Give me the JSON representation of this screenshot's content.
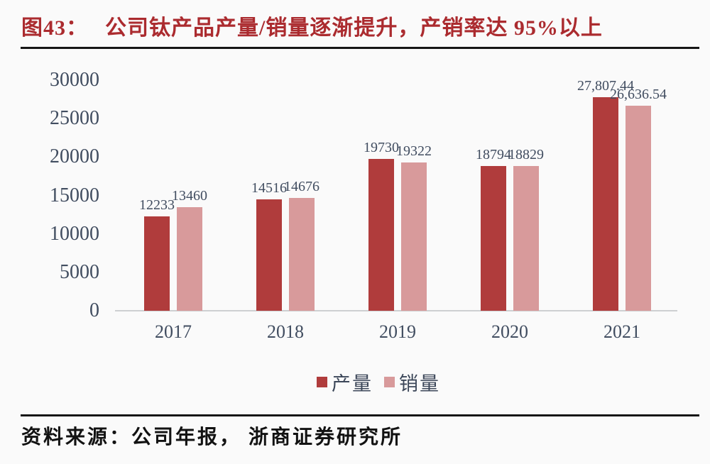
{
  "figure": {
    "label": "图43：",
    "title": "公司钛产品产量/销量逐渐提升，产销率达 95%以上"
  },
  "source": {
    "label": "资料来源：",
    "text": "公司年报， 浙商证券研究所"
  },
  "colors": {
    "title_red": "#AB2B2F",
    "production_bar": "#B03C3C",
    "sales_bar": "#D89A9B",
    "axis_text": "#414D60",
    "rule_black": "#161616",
    "baseline_gray": "#CDCFD1",
    "background": "#FAFAFA"
  },
  "chart_data": {
    "type": "bar",
    "categories": [
      "2017",
      "2018",
      "2019",
      "2020",
      "2021"
    ],
    "series": [
      {
        "name": "产量",
        "color": "#B03C3C",
        "values": [
          12233,
          14516,
          19730,
          18794,
          27807.44
        ],
        "value_labels": [
          "12233",
          "14516",
          "19730",
          "18794",
          "27,807.44"
        ]
      },
      {
        "name": "销量",
        "color": "#D89A9B",
        "values": [
          13460,
          14676,
          19322,
          18829,
          26636.54
        ],
        "value_labels": [
          "13460",
          "14676",
          "19322",
          "18829",
          "26,636.54"
        ]
      }
    ],
    "title": "公司钛产品产量/销量逐渐提升，产销率达 95%以上",
    "xlabel": "",
    "ylabel": "",
    "ylim": [
      0,
      30000
    ],
    "ytick_values": [
      0,
      5000,
      10000,
      15000,
      20000,
      25000,
      30000
    ],
    "ytick_labels": [
      "0",
      "5000",
      "10000",
      "15000",
      "20000",
      "25000",
      "30000"
    ],
    "grid": false,
    "data_labels": true,
    "legend_position": "bottom-center"
  }
}
